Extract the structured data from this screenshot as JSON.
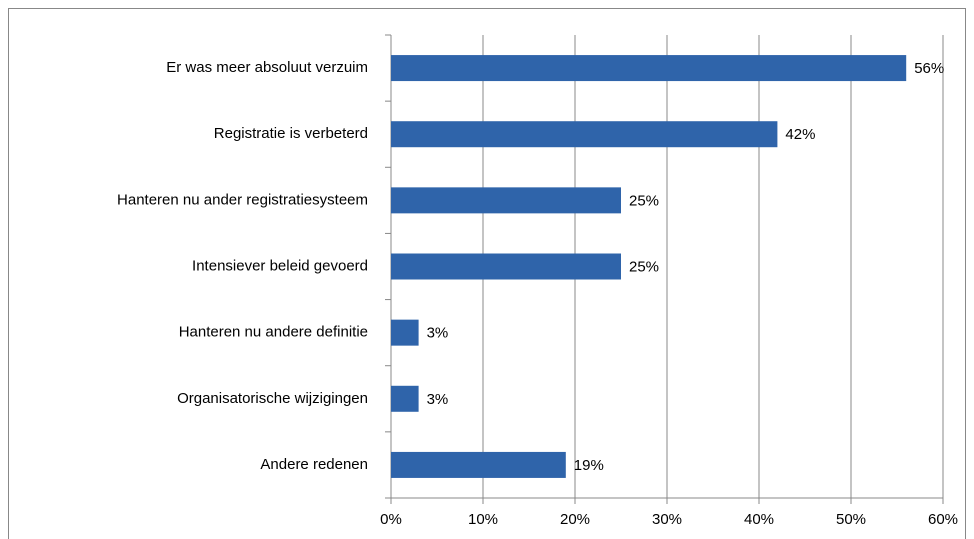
{
  "chart_data": {
    "type": "bar",
    "orientation": "horizontal",
    "categories": [
      "Er was meer absoluut verzuim",
      "Registratie is verbeterd",
      "Hanteren nu ander registratiesysteem",
      "Intensiever beleid gevoerd",
      "Hanteren nu andere definitie",
      "Organisatorische wijzigingen",
      "Andere redenen"
    ],
    "values": [
      56,
      42,
      25,
      25,
      3,
      3,
      19
    ],
    "value_labels": [
      "56%",
      "42%",
      "25%",
      "25%",
      "3%",
      "3%",
      "19%"
    ],
    "color": "#2F64AA",
    "xlim": [
      0,
      60
    ],
    "xticks": [
      {
        "value": 0,
        "label": "0%"
      },
      {
        "value": 10,
        "label": "10%"
      },
      {
        "value": 20,
        "label": "20%"
      },
      {
        "value": 30,
        "label": "30%"
      },
      {
        "value": 40,
        "label": "40%"
      },
      {
        "value": 50,
        "label": "50%"
      },
      {
        "value": 60,
        "label": "60%"
      }
    ],
    "grid": true
  }
}
